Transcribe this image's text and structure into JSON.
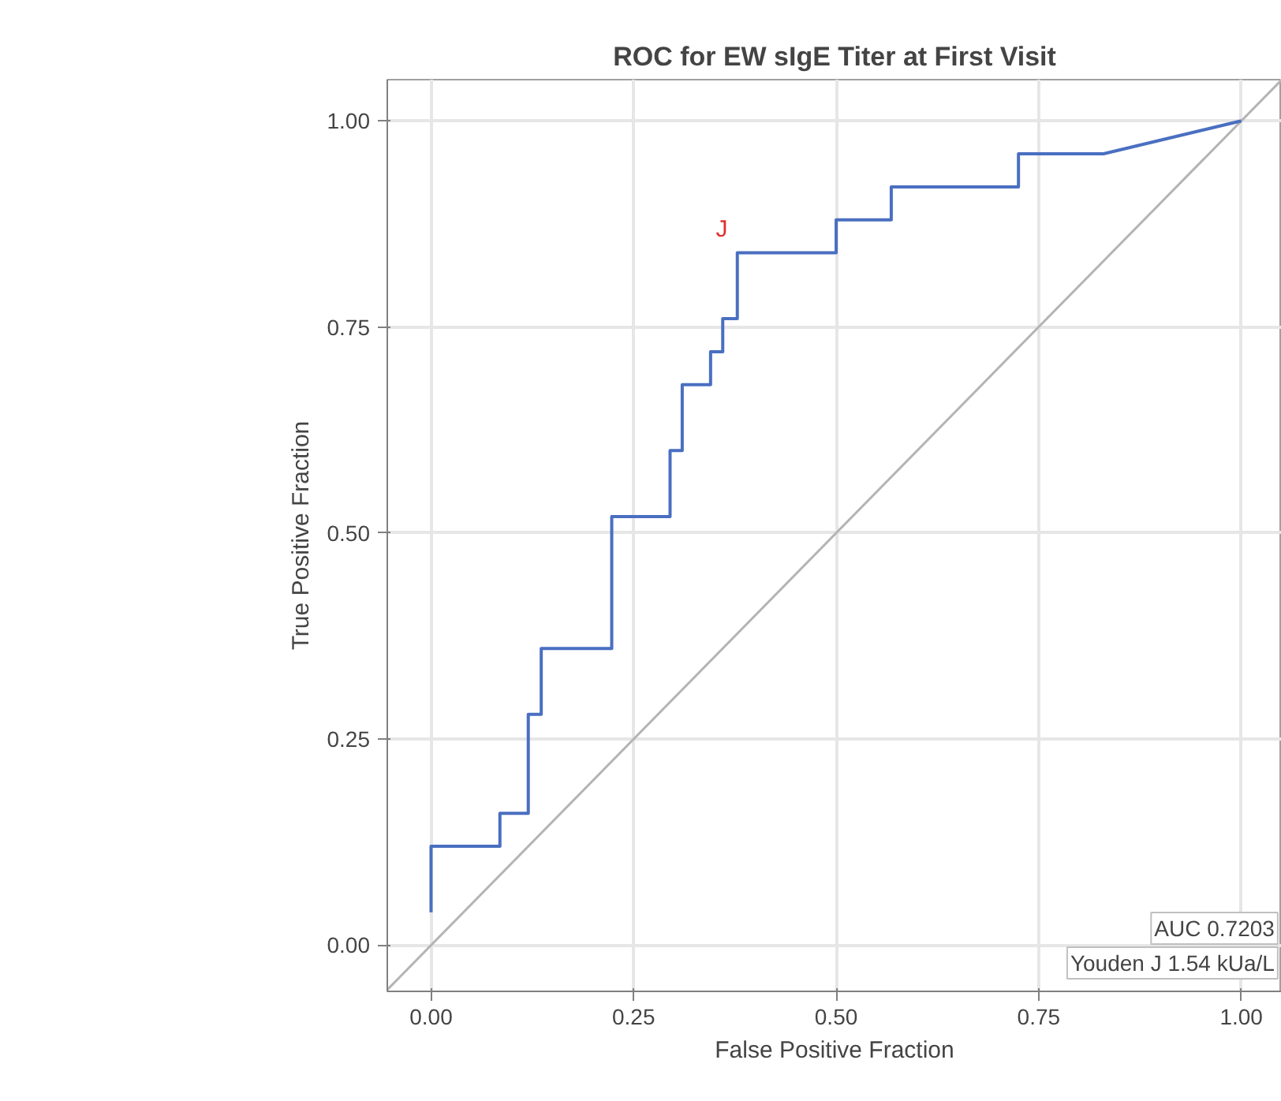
{
  "chart_data": {
    "type": "line",
    "title": "ROC for EW sIgE Titer at First Visit",
    "xlabel": "False Positive Fraction",
    "ylabel": "True Positive Fraction",
    "xlim": [
      -0.054,
      1.05
    ],
    "ylim": [
      -0.056,
      1.05
    ],
    "xticks": [
      {
        "value": 0,
        "label": "0.00"
      },
      {
        "value": 0.25,
        "label": "0.25"
      },
      {
        "value": 0.5,
        "label": "0.50"
      },
      {
        "value": 0.75,
        "label": "0.75"
      },
      {
        "value": 1,
        "label": "1.00"
      }
    ],
    "yticks": [
      {
        "value": 0,
        "label": "0.00"
      },
      {
        "value": 0.25,
        "label": "0.25"
      },
      {
        "value": 0.5,
        "label": "0.50"
      },
      {
        "value": 0.75,
        "label": "0.75"
      },
      {
        "value": 1,
        "label": "1.00"
      }
    ],
    "grid": true,
    "series": [
      {
        "color": "#b4b4b4",
        "x": [
          -0.054,
          1.05
        ],
        "values": [
          -0.054,
          1.05
        ]
      },
      {
        "color": "#4a6fc1",
        "x": [
          0,
          0,
          0.085,
          0.085,
          0.12,
          0.12,
          0.136,
          0.136,
          0.223,
          0.223,
          0.295,
          0.295,
          0.31,
          0.31,
          0.345,
          0.345,
          0.36,
          0.36,
          0.378,
          0.378,
          0.5,
          0.5,
          0.568,
          0.568,
          0.725,
          0.725,
          0.83,
          1
        ],
        "values": [
          0.04,
          0.12,
          0.12,
          0.16,
          0.16,
          0.28,
          0.28,
          0.36,
          0.36,
          0.52,
          0.52,
          0.6,
          0.6,
          0.68,
          0.68,
          0.72,
          0.72,
          0.76,
          0.76,
          0.84,
          0.84,
          0.88,
          0.88,
          0.92,
          0.92,
          0.96,
          0.96,
          1
        ]
      }
    ],
    "annotations": [
      {
        "text": "J",
        "x": 0.37,
        "y": 0.84
      },
      "AUC 0.7203",
      "Youden J 1.54 kUa/L"
    ]
  }
}
